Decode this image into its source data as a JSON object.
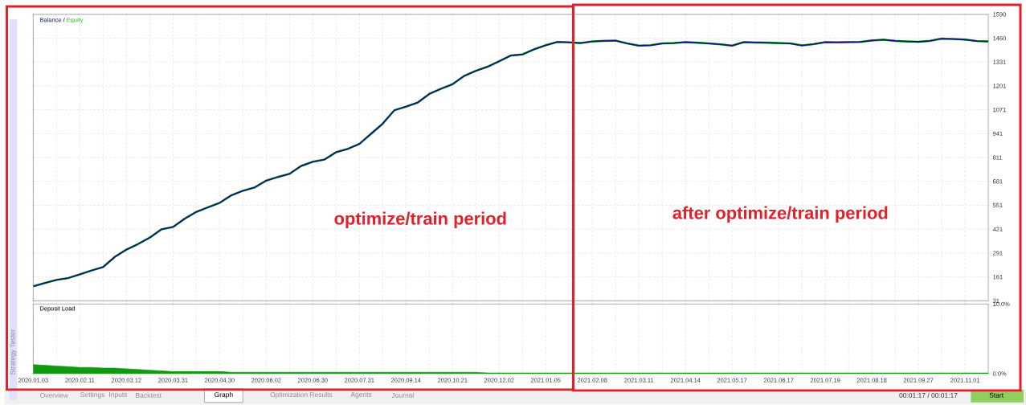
{
  "chart_data": [
    {
      "type": "line",
      "grid": true,
      "marker": "none",
      "tick_labels": "y",
      "categories": [
        "2020.01.03",
        null,
        null,
        null,
        "2020.02.11",
        null,
        null,
        null,
        "2020.03.12",
        null,
        null,
        null,
        "2020.03.31",
        null,
        null,
        null,
        "2020.04.30",
        null,
        null,
        null,
        "2020.06.02",
        null,
        null,
        null,
        "2020.06.30",
        null,
        null,
        null,
        "2020.07.31",
        null,
        null,
        null,
        "2020.09.14",
        null,
        null,
        null,
        "2020.10.21",
        null,
        null,
        null,
        "2020.12.02",
        null,
        null,
        null,
        "2021.01.05",
        null,
        null,
        null,
        "2021.02.08",
        null,
        null,
        null,
        "2021.03.11",
        null,
        null,
        null,
        "2021.04.14",
        null,
        null,
        null,
        "2021.05.17",
        null,
        null,
        null,
        "2021.06.17",
        null,
        null,
        null,
        "2021.07.19",
        null,
        null,
        null,
        "2021.08.18",
        null,
        null,
        null,
        "2021.09.27",
        null,
        null,
        null,
        "2021.11.01",
        null,
        null
      ],
      "ylim": [
        31,
        1590
      ],
      "yticks": [
        31,
        161,
        291,
        421,
        551,
        681,
        811,
        941,
        1071,
        1201,
        1331,
        1460,
        1590
      ],
      "series": [
        {
          "name": "Equity",
          "color": "#2bb52b",
          "values": [
            110,
            128,
            145,
            155,
            175,
            196,
            215,
            270,
            310,
            340,
            375,
            420,
            433,
            478,
            515,
            540,
            564,
            605,
            630,
            648,
            685,
            705,
            722,
            765,
            788,
            800,
            840,
            858,
            885,
            940,
            995,
            1068,
            1088,
            1110,
            1157,
            1185,
            1210,
            1255,
            1283,
            1305,
            1335,
            1366,
            1372,
            1400,
            1422,
            1440,
            1438,
            1434,
            1443,
            1446,
            1447,
            1432,
            1420,
            1422,
            1432,
            1434,
            1439,
            1436,
            1432,
            1427,
            1420,
            1439,
            1437,
            1436,
            1434,
            1432,
            1421,
            1428,
            1439,
            1438,
            1439,
            1440,
            1448,
            1452,
            1446,
            1443,
            1441,
            1446,
            1458,
            1456,
            1453,
            1445,
            1443
          ]
        },
        {
          "name": "Balance",
          "color": "#0a1a6e",
          "values": [
            110,
            128,
            145,
            155,
            175,
            196,
            215,
            270,
            310,
            340,
            375,
            420,
            433,
            478,
            515,
            540,
            564,
            605,
            630,
            648,
            685,
            705,
            722,
            765,
            788,
            800,
            840,
            858,
            885,
            940,
            995,
            1068,
            1088,
            1110,
            1157,
            1185,
            1210,
            1255,
            1283,
            1305,
            1335,
            1366,
            1372,
            1400,
            1422,
            1440,
            1438,
            1434,
            1443,
            1446,
            1447,
            1432,
            1420,
            1422,
            1432,
            1434,
            1439,
            1436,
            1432,
            1427,
            1420,
            1439,
            1437,
            1436,
            1434,
            1432,
            1421,
            1428,
            1439,
            1438,
            1439,
            1440,
            1448,
            1452,
            1446,
            1443,
            1441,
            1446,
            1458,
            1456,
            1453,
            1445,
            1443
          ]
        }
      ],
      "annotations": [
        "optimize/train period",
        "after optimize/train period",
        "/"
      ]
    },
    {
      "type": "area",
      "title": "Deposit Load",
      "grid": "x",
      "categories": [
        "2020.01.03",
        null,
        null,
        null,
        "2020.02.11",
        null,
        null,
        null,
        "2020.03.12",
        null,
        null,
        null,
        "2020.03.31",
        null,
        null,
        null,
        "2020.04.30",
        null,
        null,
        null,
        "2020.06.02",
        null,
        null,
        null,
        "2020.06.30",
        null,
        null,
        null,
        "2020.07.31",
        null,
        null,
        null,
        "2020.09.14",
        null,
        null,
        null,
        "2020.10.21",
        null,
        null,
        null,
        "2020.12.02",
        null,
        null,
        null,
        "2021.01.05",
        null,
        null,
        null,
        "2021.02.08",
        null,
        null,
        null,
        "2021.03.11",
        null,
        null,
        null,
        "2021.04.14",
        null,
        null,
        null,
        "2021.05.17",
        null,
        null,
        null,
        "2021.06.17",
        null,
        null,
        null,
        "2021.07.19",
        null,
        null,
        null,
        "2021.08.18",
        null,
        null,
        null,
        "2021.09.27",
        null,
        null,
        null,
        "2021.11.01",
        null,
        null
      ],
      "ylim": [
        0,
        10
      ],
      "yticks": [
        {
          "value": 10,
          "label": "10.0%"
        },
        {
          "value": 0,
          "label": "0.0%"
        }
      ],
      "color": "#119911",
      "values": [
        1.3,
        1.2,
        1.1,
        1.0,
        0.9,
        0.9,
        0.8,
        0.8,
        0.7,
        0.6,
        0.5,
        0.4,
        0.3,
        0.3,
        0.3,
        0.3,
        0.3,
        0.2,
        0.2,
        0.2,
        0.2,
        0.2,
        0.2,
        0.2,
        0.2,
        0.2,
        0.2,
        0.2,
        0.2,
        0.2,
        0.2,
        0.2,
        0.2,
        0.2,
        0.2,
        0.2,
        0.2,
        0.2,
        0.2,
        0.1,
        0.1,
        0.1,
        0.1,
        0.1,
        0.1,
        0.1,
        0.1,
        0.1,
        0.1,
        0.1,
        0.1,
        0.1,
        0.1,
        0.1,
        0.1,
        0.1,
        0.1,
        0.1,
        0.1,
        0.1,
        0.1,
        0.1,
        0.1,
        0.1,
        0.1,
        0.1,
        0.1,
        0.1,
        0.1,
        0.1,
        0.1,
        0.1,
        0.1,
        0.1,
        0.1,
        0.1,
        0.1,
        0.1,
        0.1,
        0.1,
        0.1,
        0.1,
        0.1
      ],
      "annotations": [
        "Strategy Tester",
        "Overview",
        "Settings",
        "Inputs",
        "Backtest",
        "Graph",
        "Optimization Results",
        "Agents",
        "Journal",
        "00:01:17 / 00:01:17",
        "Start"
      ]
    }
  ]
}
